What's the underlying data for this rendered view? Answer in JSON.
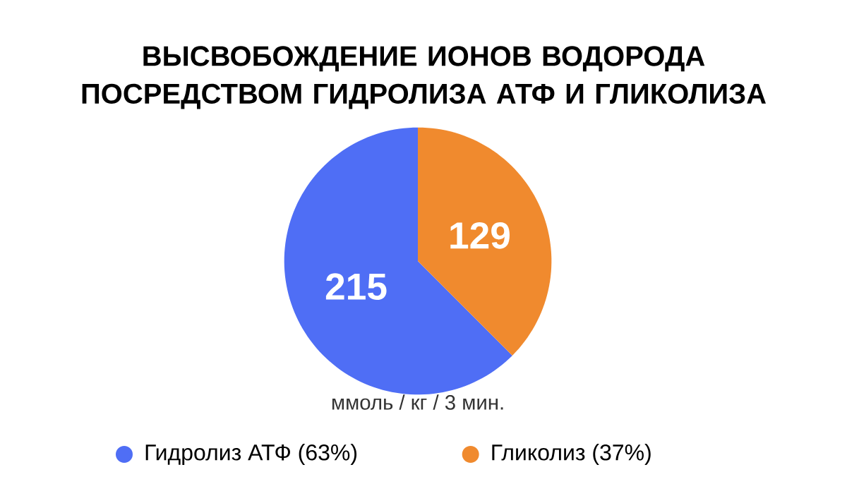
{
  "chart_data": {
    "type": "pie",
    "title": "ВЫСВОБОЖДЕНИЕ ИОНОВ ВОДОРОДА ПОСРЕДСТВОМ ГИДРОЛИЗА АТФ И ГЛИКОЛИЗА",
    "categories": [
      "Гидролиз АТФ (63%)",
      "Гликолиз (37%)"
    ],
    "values": [
      215,
      129
    ],
    "colors": [
      "#4f6ef5",
      "#f08a2e"
    ],
    "data_labels": true,
    "legend": "bottom",
    "annotations": [
      "ммоль / кг / 3 мин."
    ]
  }
}
